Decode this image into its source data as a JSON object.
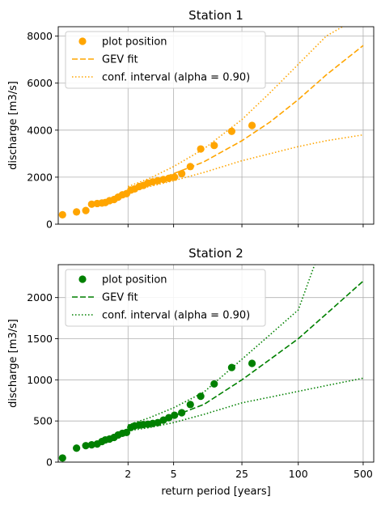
{
  "chart_data": [
    {
      "type": "scatter",
      "title": "Station 1",
      "xlabel": "",
      "ylabel": "discharge [m3/s]",
      "x_scale": "gumbel (return period)",
      "xlim": [
        1.02,
        650
      ],
      "ylim": [
        0,
        8400
      ],
      "x_ticks": [
        2,
        5,
        25,
        100,
        500
      ],
      "x_tick_labels_shown": false,
      "y_ticks": [
        0,
        2000,
        4000,
        6000,
        8000
      ],
      "y_tick_labels": [
        "0",
        "2000",
        "4000",
        "6000",
        "8000"
      ],
      "grid": true,
      "legend_position": "upper-left",
      "color": "#FFA500",
      "legend": [
        "plot position",
        "GEV fit",
        "conf. interval (alpha = 0.90)"
      ],
      "series": [
        {
          "name": "plot position",
          "style": "markers",
          "x": [
            1.03,
            1.09,
            1.16,
            1.22,
            1.29,
            1.36,
            1.42,
            1.5,
            1.6,
            1.7,
            1.82,
            1.95,
            2.1,
            2.25,
            2.45,
            2.65,
            2.9,
            3.2,
            3.55,
            4.0,
            4.5,
            5.1,
            6.0,
            7.3,
            9.3,
            12.8,
            19.5,
            32
          ],
          "y": [
            400,
            520,
            580,
            850,
            880,
            900,
            920,
            1000,
            1050,
            1150,
            1250,
            1300,
            1450,
            1500,
            1600,
            1650,
            1750,
            1800,
            1850,
            1900,
            1950,
            2000,
            2150,
            2450,
            3200,
            3350,
            3950,
            4200
          ]
        },
        {
          "name": "GEV fit",
          "style": "dashed",
          "x": [
            2,
            3,
            5,
            10,
            25,
            50,
            100,
            200,
            500
          ],
          "y": [
            1500,
            1750,
            2150,
            2650,
            3550,
            4350,
            5300,
            6350,
            7600
          ]
        },
        {
          "name": "conf. interval (alpha = 0.90) upper",
          "style": "dotted",
          "x": [
            2,
            3,
            5,
            10,
            25,
            50,
            100,
            200,
            300
          ],
          "y": [
            1600,
            1950,
            2450,
            3200,
            4450,
            5600,
            6800,
            8000,
            8400
          ]
        },
        {
          "name": "conf. interval (alpha = 0.90) lower",
          "style": "dotted",
          "x": [
            2,
            3,
            5,
            10,
            25,
            50,
            100,
            200,
            500
          ],
          "y": [
            1400,
            1600,
            1850,
            2200,
            2700,
            3000,
            3300,
            3550,
            3800
          ]
        }
      ]
    },
    {
      "type": "scatter",
      "title": "Station 2",
      "xlabel": "return period [years]",
      "ylabel": "discharge [m3/s]",
      "x_scale": "gumbel (return period)",
      "xlim": [
        1.02,
        650
      ],
      "ylim": [
        0,
        2400
      ],
      "x_ticks": [
        2,
        5,
        25,
        100,
        500
      ],
      "x_tick_labels": [
        "2",
        "5",
        "25",
        "100",
        "500"
      ],
      "y_ticks": [
        0,
        500,
        1000,
        1500,
        2000
      ],
      "y_tick_labels": [
        "0",
        "500",
        "1000",
        "1500",
        "2000"
      ],
      "grid": true,
      "legend_position": "upper-left",
      "color": "#008000",
      "legend": [
        "plot position",
        "GEV fit",
        "conf. interval (alpha = 0.90)"
      ],
      "series": [
        {
          "name": "plot position",
          "style": "markers",
          "x": [
            1.03,
            1.09,
            1.16,
            1.22,
            1.29,
            1.36,
            1.42,
            1.5,
            1.6,
            1.7,
            1.82,
            1.95,
            2.1,
            2.25,
            2.45,
            2.65,
            2.9,
            3.2,
            3.55,
            4.0,
            4.5,
            5.1,
            6.0,
            7.3,
            9.3,
            12.8,
            19.5,
            32
          ],
          "y": [
            50,
            170,
            200,
            210,
            220,
            250,
            270,
            280,
            300,
            330,
            350,
            360,
            420,
            440,
            450,
            455,
            460,
            470,
            480,
            510,
            540,
            570,
            600,
            700,
            800,
            950,
            1150,
            1200
          ]
        },
        {
          "name": "GEV fit",
          "style": "dashed",
          "x": [
            2,
            3,
            5,
            10,
            25,
            50,
            100,
            200,
            500
          ],
          "y": [
            410,
            470,
            560,
            700,
            1000,
            1250,
            1500,
            1800,
            2200
          ]
        },
        {
          "name": "conf. interval (alpha = 0.90) upper",
          "style": "dotted",
          "x": [
            2,
            3,
            5,
            10,
            25,
            50,
            100,
            150
          ],
          "y": [
            450,
            540,
            660,
            850,
            1250,
            1550,
            1850,
            2400
          ]
        },
        {
          "name": "conf. interval (alpha = 0.90) lower",
          "style": "dotted",
          "x": [
            2,
            3,
            5,
            10,
            25,
            50,
            100,
            200,
            500
          ],
          "y": [
            380,
            420,
            480,
            580,
            720,
            790,
            860,
            930,
            1020
          ]
        }
      ]
    }
  ]
}
